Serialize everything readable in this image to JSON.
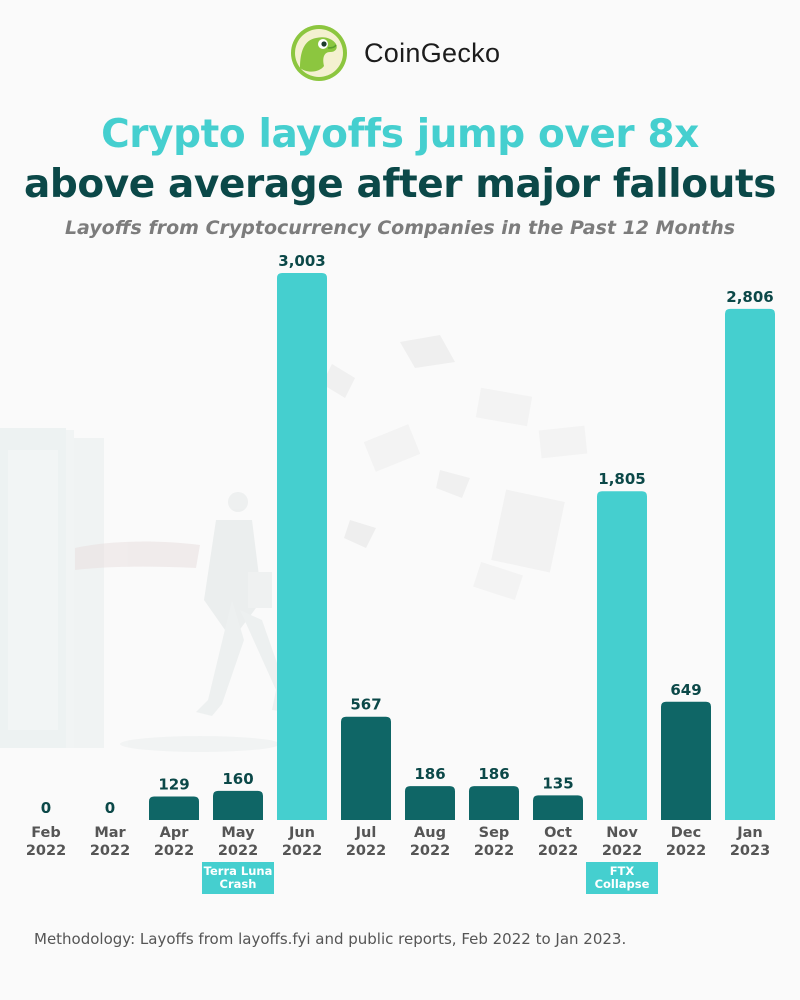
{
  "brand": {
    "name": "CoinGecko",
    "logo_icon": "gecko-logo-icon"
  },
  "headline": {
    "line1": "Crypto layoffs jump over 8x",
    "line2": "above average after major fallouts"
  },
  "colors": {
    "accent": "#45cfcf",
    "dark": "#0b4848",
    "bar_dark": "#0f6666",
    "text_gray": "#555555"
  },
  "chart_data": {
    "type": "bar",
    "title": "Layoffs from Cryptocurrency Companies in the Past 12 Months",
    "xlabel": "",
    "ylabel": "",
    "ylim": [
      0,
      3003
    ],
    "grid": false,
    "categories": [
      [
        "Feb",
        "2022"
      ],
      [
        "Mar",
        "2022"
      ],
      [
        "Apr",
        "2022"
      ],
      [
        "May",
        "2022"
      ],
      [
        "Jun",
        "2022"
      ],
      [
        "Jul",
        "2022"
      ],
      [
        "Aug",
        "2022"
      ],
      [
        "Sep",
        "2022"
      ],
      [
        "Oct",
        "2022"
      ],
      [
        "Nov",
        "2022"
      ],
      [
        "Dec",
        "2022"
      ],
      [
        "Jan",
        "2023"
      ]
    ],
    "values": [
      0,
      0,
      129,
      160,
      3003,
      567,
      186,
      186,
      135,
      1805,
      649,
      2806
    ],
    "value_labels": [
      "0",
      "0",
      "129",
      "160",
      "3,003",
      "567",
      "186",
      "186",
      "135",
      "1,805",
      "649",
      "2,806"
    ],
    "highlighted": [
      false,
      false,
      false,
      false,
      true,
      false,
      false,
      false,
      false,
      true,
      false,
      true
    ],
    "annotations": [
      {
        "category_index": 3,
        "lines": [
          "Terra Luna",
          "Crash"
        ]
      },
      {
        "category_index": 9,
        "lines": [
          "FTX",
          "Collapse"
        ]
      }
    ]
  },
  "footer": {
    "methodology": "Methodology: Layoffs from layoffs.fyi and public reports, Feb 2022 to Jan 2023."
  }
}
